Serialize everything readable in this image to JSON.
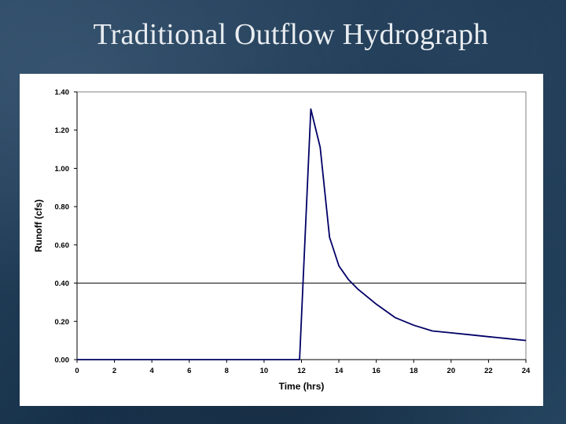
{
  "slide": {
    "title": "Traditional Outflow Hydrograph"
  },
  "chart_data": {
    "type": "line",
    "title": "",
    "xlabel": "Time (hrs)",
    "ylabel": "Runoff (cfs)",
    "xlim": [
      0,
      24
    ],
    "ylim": [
      0,
      1.4
    ],
    "x_ticks": [
      "0",
      "2",
      "4",
      "6",
      "8",
      "10",
      "12",
      "14",
      "16",
      "18",
      "20",
      "22",
      "24"
    ],
    "y_ticks": [
      "0.00",
      "0.20",
      "0.40",
      "0.60",
      "0.80",
      "1.00",
      "1.20",
      "1.40"
    ],
    "grid": false,
    "reference_line_y": 0.4,
    "line_color": "#000066",
    "series": [
      {
        "x": [
          0,
          11.9,
          12.5,
          13.0,
          13.5,
          14.0,
          14.5,
          15.0,
          16.0,
          17.0,
          18.0,
          19.0,
          20.0,
          21.0,
          22.0,
          23.0,
          24.0
        ],
        "y": [
          0,
          0,
          1.31,
          1.11,
          0.64,
          0.49,
          0.42,
          0.37,
          0.29,
          0.22,
          0.18,
          0.15,
          0.14,
          0.13,
          0.12,
          0.11,
          0.1
        ]
      }
    ]
  }
}
